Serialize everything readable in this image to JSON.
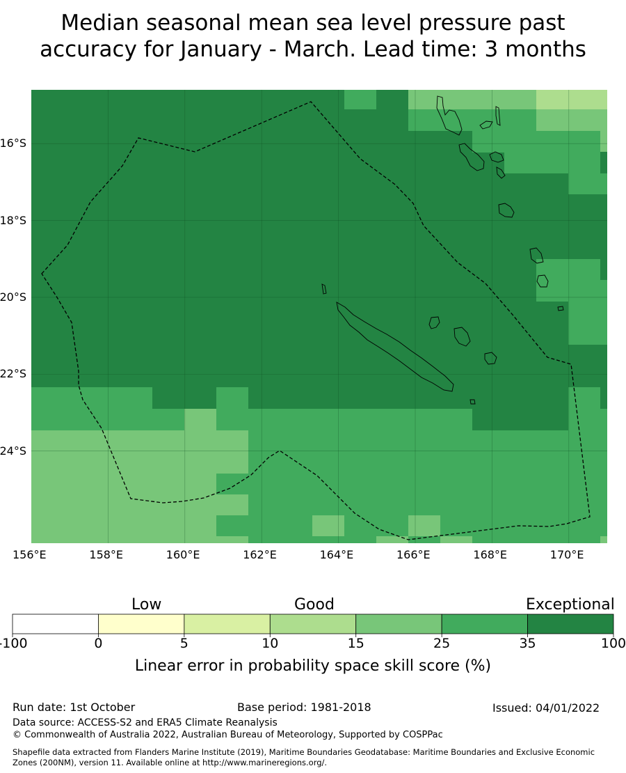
{
  "title_line1": "Median seasonal mean sea level pressure past",
  "title_line2": "accuracy for January - March. Lead time: 3 months",
  "map": {
    "lon_range": [
      156,
      171
    ],
    "lat_range": [
      -26.4,
      -14.6
    ],
    "lon_ticks": [
      "156°E",
      "158°E",
      "160°E",
      "162°E",
      "164°E",
      "166°E",
      "168°E",
      "170°E"
    ],
    "lat_ticks": [
      "16°S",
      "18°S",
      "20°S",
      "22°S",
      "24°S"
    ],
    "category_colors": {
      "A": "#238443",
      "B": "#41ab5d",
      "C": "#78c679",
      "D": "#addd8e"
    }
  },
  "colorbar": {
    "category_labels": {
      "low": "Low",
      "good": "Good",
      "exceptional": "Exceptional"
    },
    "ticks": [
      "-100",
      "0",
      "5",
      "10",
      "15",
      "25",
      "35",
      "100"
    ],
    "colors": [
      "#ffffff",
      "#ffffcc",
      "#d9f0a3",
      "#addd8e",
      "#78c679",
      "#41ab5d",
      "#238443"
    ],
    "caption": "Linear error in probability space skill score (%)"
  },
  "footer": {
    "run_date": "Run date: 1st October",
    "base_period": "Base period: 1981-2018",
    "issued": "Issued: 04/01/2022",
    "data_source": "Data source: ACCESS-S2 and ERA5 Climate Reanalysis",
    "copyright": "© Commonwealth of Australia 2022, Australian Bureau of Meteorology, Supported by COSPPac",
    "shapefile_line1": "Shapefile data extracted from Flanders Marine Institute (2019), Maritime Boundaries Geodatabase: Maritime Boundaries and Exclusive Economic",
    "shapefile_line2": "Zones (200NM), version 11. Available online at http://www.marineregions.org/."
  }
}
